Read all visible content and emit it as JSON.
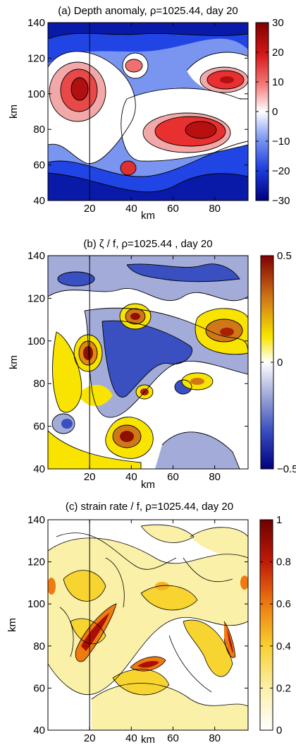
{
  "chart_data": [
    {
      "type": "heatmap",
      "title": "(a) Depth anomaly, ρ=1025.44, day 20",
      "xlabel": "km",
      "ylabel": "km",
      "xlim": [
        0,
        96
      ],
      "ylim": [
        40,
        140
      ],
      "xticks": [
        "20",
        "40",
        "60",
        "80"
      ],
      "yticks": [
        "40",
        "60",
        "80",
        "100",
        "120",
        "140"
      ],
      "colorbar": {
        "min": -30,
        "max": 30,
        "ticks": [
          "30",
          "20",
          "10",
          "0",
          "−10",
          "−20",
          "−30"
        ]
      },
      "colormap": [
        "#00008f",
        "#1f3fe0",
        "#6f8cf0",
        "#ffffff",
        "#f07a7a",
        "#e02020",
        "#8f0000"
      ],
      "guide_x": 20,
      "features": [
        {
          "kind": "high",
          "x": 16,
          "y": 103,
          "rx": 9,
          "ry": 11,
          "amp": 28
        },
        {
          "kind": "high",
          "x": 67,
          "y": 83,
          "rx": 17,
          "ry": 9,
          "amp": 27
        },
        {
          "kind": "high",
          "x": 40,
          "y": 65,
          "rx": 4,
          "ry": 4,
          "amp": 18
        },
        {
          "kind": "high",
          "x": 88,
          "y": 110,
          "rx": 10,
          "ry": 7,
          "amp": 24
        },
        {
          "kind": "high",
          "x": 43,
          "y": 117,
          "rx": 5,
          "ry": 5,
          "amp": 12
        },
        {
          "kind": "low",
          "x": 50,
          "y": 55,
          "rx": 30,
          "ry": 10,
          "amp": -28
        },
        {
          "kind": "low",
          "x": 60,
          "y": 135,
          "rx": 35,
          "ry": 8,
          "amp": -20
        }
      ]
    },
    {
      "type": "heatmap",
      "title": "(b) ζ / f, ρ=1025.44 , day 20",
      "xlabel": "km",
      "ylabel": "km",
      "xlim": [
        0,
        96
      ],
      "ylim": [
        40,
        140
      ],
      "xticks": [
        "20",
        "40",
        "60",
        "80"
      ],
      "yticks": [
        "40",
        "60",
        "80",
        "100",
        "120",
        "140"
      ],
      "colorbar": {
        "min": -0.5,
        "max": 0.5,
        "ticks": [
          "0.5",
          "0",
          "−0.5"
        ]
      },
      "colormap": [
        "#00008f",
        "#3a4fc0",
        "#9aa4d8",
        "#ffffff",
        "#f5e800",
        "#d98000",
        "#8f0000"
      ],
      "guide_x": 20,
      "features": [
        {
          "kind": "high",
          "x": 15,
          "y": 105,
          "rx": 4,
          "ry": 5,
          "amp": 0.45
        },
        {
          "kind": "high",
          "x": 45,
          "y": 118,
          "rx": 5,
          "ry": 4,
          "amp": 0.45
        },
        {
          "kind": "high",
          "x": 35,
          "y": 64,
          "rx": 6,
          "ry": 5,
          "amp": 0.45
        },
        {
          "kind": "high",
          "x": 47,
          "y": 80,
          "rx": 4,
          "ry": 4,
          "amp": 0.4
        },
        {
          "kind": "high",
          "x": 83,
          "y": 112,
          "rx": 8,
          "ry": 6,
          "amp": 0.4
        },
        {
          "kind": "high",
          "x": 76,
          "y": 90,
          "rx": 7,
          "ry": 4,
          "amp": 0.25
        },
        {
          "kind": "low",
          "x": 55,
          "y": 100,
          "rx": 12,
          "ry": 12,
          "amp": -0.4
        },
        {
          "kind": "low",
          "x": 30,
          "y": 80,
          "rx": 6,
          "ry": 14,
          "amp": -0.35
        },
        {
          "kind": "low",
          "x": 25,
          "y": 130,
          "rx": 14,
          "ry": 6,
          "amp": -0.3
        }
      ]
    },
    {
      "type": "heatmap",
      "title": "(c) strain rate / f, ρ=1025.44, day 20",
      "xlabel": "km",
      "ylabel": "km",
      "xlim": [
        0,
        96
      ],
      "ylim": [
        40,
        140
      ],
      "xticks": [
        "20",
        "40",
        "60",
        "80"
      ],
      "yticks": [
        "40",
        "60",
        "80",
        "100",
        "120",
        "140"
      ],
      "colorbar": {
        "min": 0,
        "max": 1,
        "ticks": [
          "1",
          "0.8",
          "0.6",
          "0.4",
          "0.2",
          "0"
        ]
      },
      "colormap": [
        "#ffffff",
        "#fdf5b8",
        "#f9e44a",
        "#f6b21e",
        "#e85a10",
        "#b01008",
        "#700000"
      ],
      "guide_x": 20,
      "features": [
        {
          "kind": "high",
          "x": 19,
          "y": 82,
          "rx": 3,
          "ry": 6,
          "amp": 0.95
        },
        {
          "kind": "high",
          "x": 44,
          "y": 72,
          "rx": 4,
          "ry": 2,
          "amp": 0.9
        },
        {
          "kind": "high",
          "x": 87,
          "y": 74,
          "rx": 2,
          "ry": 4,
          "amp": 0.8
        },
        {
          "kind": "high",
          "x": 2,
          "y": 110,
          "rx": 3,
          "ry": 4,
          "amp": 0.5
        },
        {
          "kind": "high",
          "x": 94,
          "y": 106,
          "rx": 3,
          "ry": 4,
          "amp": 0.5
        },
        {
          "kind": "high",
          "x": 50,
          "y": 100,
          "rx": 6,
          "ry": 5,
          "amp": 0.45
        }
      ]
    }
  ]
}
